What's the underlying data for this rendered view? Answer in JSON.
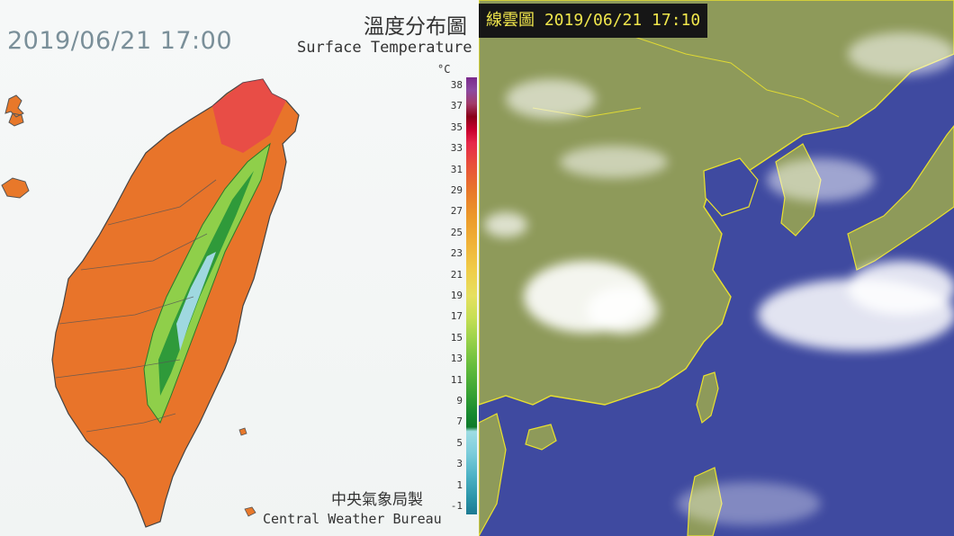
{
  "temperature_map": {
    "datetime": "2019/06/21 17:00",
    "title_zh": "溫度分布圖",
    "title_en": "Surface Temperature",
    "unit": "°C",
    "legend_ticks": [
      "38",
      "37",
      "35",
      "33",
      "31",
      "29",
      "27",
      "25",
      "23",
      "21",
      "19",
      "17",
      "15",
      "13",
      "11",
      "9",
      "7",
      "5",
      "3",
      "1",
      "-1"
    ],
    "credit_zh": "中央氣象局製",
    "credit_en": "Central Weather Bureau"
  },
  "satellite_image": {
    "label": "線雲圖 2019/06/21  17:10"
  }
}
